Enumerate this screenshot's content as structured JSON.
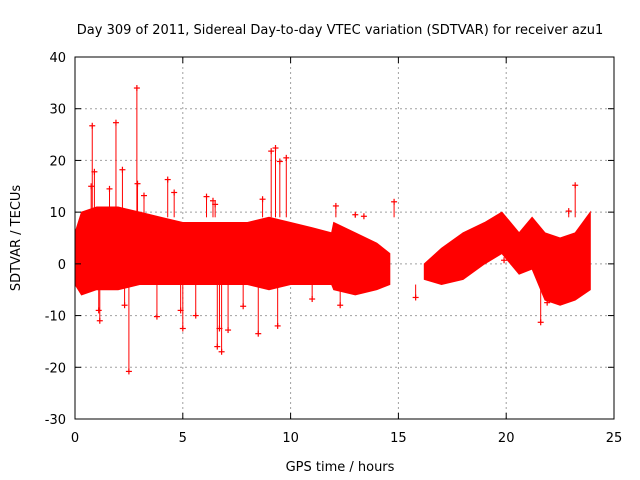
{
  "chart_data": {
    "type": "scatter",
    "title": "Day 309 of 2011, Sidereal Day-to-day VTEC variation (SDTVAR) for receiver azu1",
    "xlabel": "GPS time / hours",
    "ylabel": "SDTVAR / TECUs",
    "xlim": [
      0,
      25
    ],
    "ylim": [
      -30,
      40
    ],
    "x_ticks": [
      0,
      5,
      10,
      15,
      20,
      25
    ],
    "y_ticks": [
      -30,
      -20,
      -10,
      0,
      10,
      20,
      30,
      40
    ],
    "grid": true,
    "marker": "+",
    "errorbars": true,
    "color": "#ff0000",
    "series": [
      {
        "name": "azu1",
        "envelope": [
          {
            "x": 0.0,
            "low": -4,
            "high": 6
          },
          {
            "x": 0.3,
            "low": -6,
            "high": 10
          },
          {
            "x": 1.0,
            "low": -5,
            "high": 11
          },
          {
            "x": 2.0,
            "low": -5,
            "high": 11
          },
          {
            "x": 3.0,
            "low": -4,
            "high": 10
          },
          {
            "x": 4.0,
            "low": -4,
            "high": 9
          },
          {
            "x": 5.0,
            "low": -4,
            "high": 8
          },
          {
            "x": 6.0,
            "low": -4,
            "high": 8
          },
          {
            "x": 7.0,
            "low": -4,
            "high": 8
          },
          {
            "x": 8.0,
            "low": -4,
            "high": 8
          },
          {
            "x": 9.0,
            "low": -5,
            "high": 9
          },
          {
            "x": 10.0,
            "low": -4,
            "high": 8
          },
          {
            "x": 11.0,
            "low": -4,
            "high": 7
          },
          {
            "x": 11.9,
            "low": -4,
            "high": 6
          },
          {
            "x": 12.0,
            "low": -5,
            "high": 8
          },
          {
            "x": 13.0,
            "low": -6,
            "high": 6
          },
          {
            "x": 14.0,
            "low": -5,
            "high": 4
          },
          {
            "x": 14.6,
            "low": -4,
            "high": 2
          },
          {
            "x": 16.2,
            "low": -3,
            "high": 0
          },
          {
            "x": 17.0,
            "low": -4,
            "high": 3
          },
          {
            "x": 18.0,
            "low": -3,
            "high": 6
          },
          {
            "x": 19.0,
            "low": 0,
            "high": 8
          },
          {
            "x": 19.8,
            "low": 2,
            "high": 10
          },
          {
            "x": 20.6,
            "low": -2,
            "high": 6
          },
          {
            "x": 21.2,
            "low": -1,
            "high": 9
          },
          {
            "x": 21.8,
            "low": -7,
            "high": 6
          },
          {
            "x": 22.5,
            "low": -8,
            "high": 5
          },
          {
            "x": 23.2,
            "low": -7,
            "high": 6
          },
          {
            "x": 23.9,
            "low": -5,
            "high": 10
          }
        ],
        "points": [
          {
            "x": 2.87,
            "y": 34
          },
          {
            "x": 0.8,
            "y": 26.7
          },
          {
            "x": 1.9,
            "y": 27.3
          },
          {
            "x": 9.3,
            "y": 22.4
          },
          {
            "x": 9.1,
            "y": 21.8
          },
          {
            "x": 9.8,
            "y": 20.5
          },
          {
            "x": 9.5,
            "y": 19.8
          },
          {
            "x": 2.2,
            "y": 18.2
          },
          {
            "x": 0.9,
            "y": 17.8
          },
          {
            "x": 4.3,
            "y": 16.3
          },
          {
            "x": 2.9,
            "y": 15.5
          },
          {
            "x": 0.75,
            "y": 15.0
          },
          {
            "x": 1.6,
            "y": 14.5
          },
          {
            "x": 4.6,
            "y": 13.8
          },
          {
            "x": 3.2,
            "y": 13.2
          },
          {
            "x": 6.1,
            "y": 13.0
          },
          {
            "x": 8.7,
            "y": 12.5
          },
          {
            "x": 6.4,
            "y": 12.2
          },
          {
            "x": 6.5,
            "y": 11.5
          },
          {
            "x": 14.8,
            "y": 12.0
          },
          {
            "x": 23.2,
            "y": 15.2
          },
          {
            "x": 22.9,
            "y": 10.2
          },
          {
            "x": 12.1,
            "y": 11.2
          },
          {
            "x": 13.0,
            "y": 9.5
          },
          {
            "x": 13.4,
            "y": 9.2
          },
          {
            "x": 1.1,
            "y": -9.0
          },
          {
            "x": 1.15,
            "y": -11.0
          },
          {
            "x": 2.5,
            "y": -20.8
          },
          {
            "x": 5.0,
            "y": -12.5
          },
          {
            "x": 6.7,
            "y": -12.5
          },
          {
            "x": 6.8,
            "y": -17.0
          },
          {
            "x": 6.6,
            "y": -16.0
          },
          {
            "x": 7.1,
            "y": -12.8
          },
          {
            "x": 8.5,
            "y": -13.5
          },
          {
            "x": 9.4,
            "y": -12.0
          },
          {
            "x": 3.8,
            "y": -10.2
          },
          {
            "x": 5.6,
            "y": -10.0
          },
          {
            "x": 7.8,
            "y": -8.2
          },
          {
            "x": 4.9,
            "y": -9.0
          },
          {
            "x": 2.3,
            "y": -8.0
          },
          {
            "x": 21.6,
            "y": -11.3
          },
          {
            "x": 21.9,
            "y": -7.5
          },
          {
            "x": 19.9,
            "y": 0.7
          },
          {
            "x": 15.8,
            "y": -6.5
          },
          {
            "x": 11.0,
            "y": -6.8
          },
          {
            "x": 12.3,
            "y": -8.0
          }
        ]
      }
    ]
  }
}
